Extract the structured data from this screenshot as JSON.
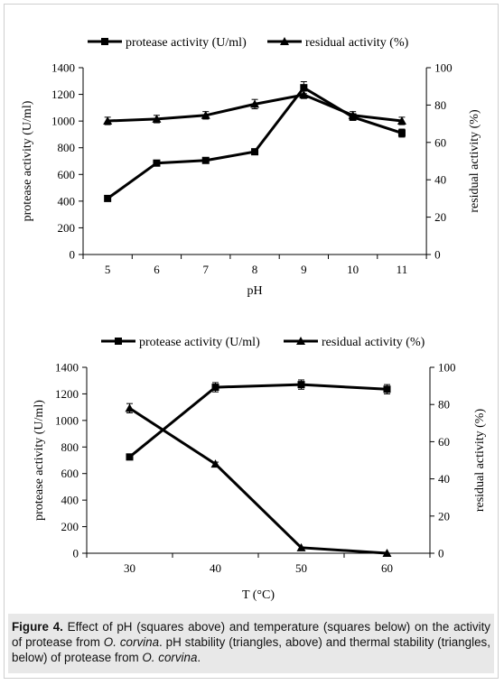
{
  "chart_data": [
    {
      "type": "line",
      "x": [
        5,
        6,
        7,
        8,
        9,
        10,
        11
      ],
      "xlabel": "pH",
      "ylabel_left": "protease activity (U/ml)",
      "ylabel_right": "residual activity (%)",
      "ylim_left": [
        0,
        1400
      ],
      "yticks_left": [
        0,
        200,
        400,
        600,
        800,
        1000,
        1200,
        1400
      ],
      "ylim_right": [
        0,
        100
      ],
      "yticks_right": [
        0,
        20,
        40,
        60,
        80,
        100
      ],
      "legend_position": "top",
      "series": [
        {
          "name": "protease activity (U/ml)",
          "marker": "square",
          "axis": "left",
          "values": [
            420,
            685,
            705,
            770,
            1250,
            1030,
            910
          ],
          "errors": [
            0,
            15,
            20,
            15,
            45,
            25,
            30
          ]
        },
        {
          "name": "residual activity (%)",
          "marker": "triangle",
          "axis": "right",
          "values": [
            71.5,
            72.5,
            74.5,
            80.5,
            85.5,
            74.5,
            71.5
          ],
          "errors": [
            2,
            2,
            2,
            2.5,
            2,
            2,
            2
          ]
        }
      ]
    },
    {
      "type": "line",
      "x": [
        30,
        40,
        50,
        60
      ],
      "xlabel": "T (°C)",
      "ylabel_left": "protease activity (U/ml)",
      "ylabel_right": "residual activity (%)",
      "ylim_left": [
        0,
        1400
      ],
      "yticks_left": [
        0,
        200,
        400,
        600,
        800,
        1000,
        1200,
        1400
      ],
      "ylim_right": [
        0,
        100
      ],
      "yticks_right": [
        0,
        20,
        40,
        60,
        80,
        100
      ],
      "legend_position": "top",
      "series": [
        {
          "name": "protease activity (U/ml)",
          "marker": "square",
          "axis": "left",
          "values": [
            725,
            1250,
            1270,
            1235
          ],
          "errors": [
            0,
            35,
            35,
            35
          ]
        },
        {
          "name": "residual activity (%)",
          "marker": "triangle",
          "axis": "right",
          "values": [
            78,
            48,
            3,
            0
          ],
          "errors": [
            2.5,
            1,
            0,
            0
          ]
        }
      ]
    }
  ],
  "caption": {
    "label": "Figure 4.",
    "part1": " Effect of pH (squares above) and temperature (squares below) on the activity of protease from ",
    "organism": "O. corvina",
    "part2": ". pH stability (triangles, above) and thermal stability (triangles, below) of protease from ",
    "organism2": "O. corvina",
    "part3": "."
  }
}
